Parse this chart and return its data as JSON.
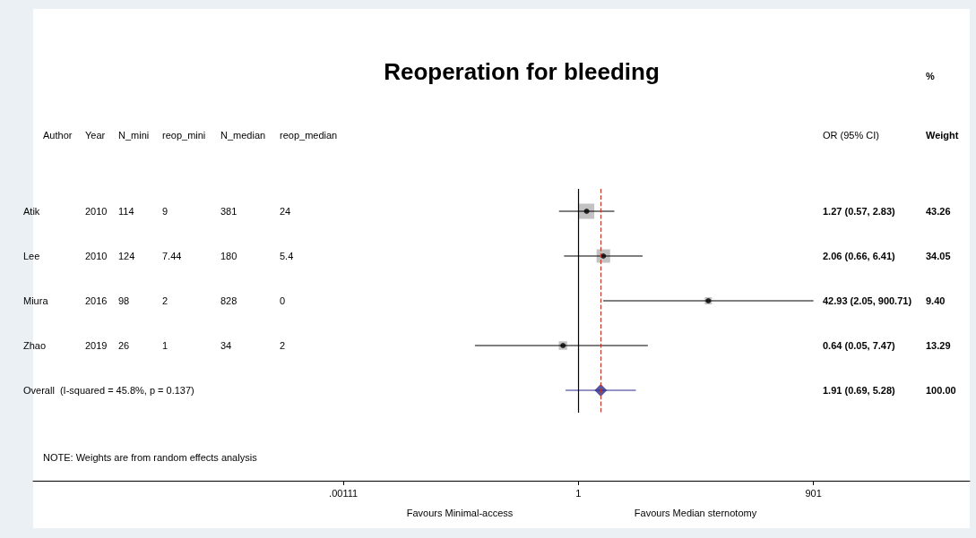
{
  "chart_data": {
    "type": "scatter",
    "title": "Reoperation for bleeding",
    "orientation": "horizontal",
    "categories": [
      "Atik",
      "Lee",
      "Miura",
      "Zhao",
      "Overall  (I-squared = 45.8%, p = 0.137)"
    ],
    "series": [
      {
        "type": "bubble",
        "marker": "square",
        "color": "#b3b3b3",
        "values": [
          1.27,
          2.06,
          42.93,
          0.64,
          null
        ],
        "sizes": [
          1,
          0.787,
          0.217,
          0.307,
          null
        ]
      },
      {
        "marker": "circle",
        "color": "#000000",
        "values": [
          1.27,
          2.06,
          42.93,
          0.64,
          null
        ],
        "errors": [
          [
            0.57,
            2.83
          ],
          [
            0.66,
            6.41
          ],
          [
            2.05,
            900.71
          ],
          [
            0.05,
            7.47
          ],
          null
        ]
      },
      {
        "marker": "diamond",
        "color": "#2b2a8c",
        "values": [
          null,
          null,
          null,
          null,
          1.91
        ],
        "errors": [
          null,
          null,
          null,
          null,
          [
            0.69,
            5.28
          ]
        ]
      }
    ],
    "log": "x",
    "xlim": [
      1.4e-07,
      83000
    ],
    "xticks": [
      {
        "value": 0.00111,
        "label": ".00111"
      },
      1,
      901
    ],
    "ref_lines": [
      {
        "axis": "x",
        "value": 1,
        "color": "#000000",
        "line_style": "solid"
      },
      {
        "axis": "x",
        "value": 1.91,
        "color": "#c0392b",
        "line_style": "dashed"
      }
    ],
    "grid": false,
    "annotations": [
      "Author",
      "Year",
      "N_mini",
      "reop_mini",
      "N_median",
      "reop_median",
      "OR (95% CI)",
      "%",
      "Weight",
      "2010",
      "114",
      "9",
      "381",
      "24",
      "2010",
      "124",
      "7.44",
      "180",
      "5.4",
      "2016",
      "98",
      "2",
      "828",
      "0",
      "2019",
      "26",
      "1",
      "34",
      "2",
      "1.27 (0.57, 2.83)",
      "43.26",
      "2.06 (0.66, 6.41)",
      "34.05",
      "42.93 (2.05, 900.71)",
      "9.40",
      "0.64 (0.05, 7.47)",
      "13.29",
      "1.91 (0.69, 5.28)",
      "100.00",
      "NOTE: Weights are from random effects analysis",
      "Favours Minimal-access",
      "Favours Median sternotomy"
    ]
  }
}
